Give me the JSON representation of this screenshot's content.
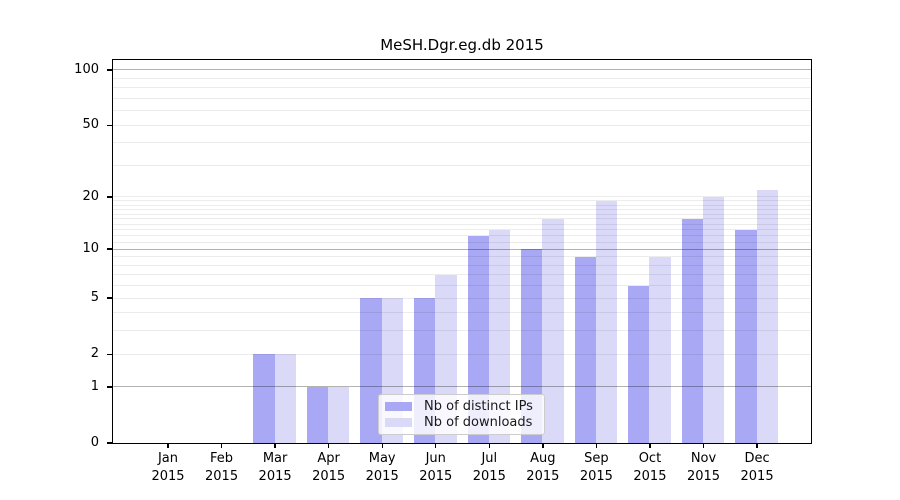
{
  "title": "MeSH.Dgr.eg.db 2015",
  "colors": {
    "distinct_ips": "#a8a8f5",
    "downloads": "#dadaf8",
    "grid_major": "#b3b3b3",
    "grid_minor": "#ededed",
    "frame": "#000000"
  },
  "legend": {
    "items": [
      {
        "label": "Nb of distinct IPs"
      },
      {
        "label": "Nb of downloads"
      }
    ]
  },
  "chart_data": {
    "type": "bar",
    "title": "MeSH.Dgr.eg.db 2015",
    "categories": [
      "Jan 2015",
      "Feb 2015",
      "Mar 2015",
      "Apr 2015",
      "May 2015",
      "Jun 2015",
      "Jul 2015",
      "Aug 2015",
      "Sep 2015",
      "Oct 2015",
      "Nov 2015",
      "Dec 2015"
    ],
    "series": [
      {
        "name": "Nb of distinct IPs",
        "color": "#a8a8f5",
        "values": [
          0,
          0,
          2,
          1,
          5,
          5,
          12,
          10,
          9,
          6,
          15,
          13
        ]
      },
      {
        "name": "Nb of downloads",
        "color": "#dadaf8",
        "values": [
          0,
          0,
          2,
          1,
          5,
          7,
          13,
          15,
          19,
          9,
          20,
          22
        ]
      }
    ],
    "xlabel": "",
    "ylabel": "",
    "yscale": "log1p",
    "ylim": [
      0,
      113
    ],
    "yticks": [
      0,
      1,
      2,
      5,
      10,
      20,
      50,
      100
    ],
    "grid": "horizontal",
    "grid_major_at": [
      1,
      10,
      100
    ],
    "grid_minor_at": [
      2,
      3,
      4,
      5,
      6,
      7,
      8,
      9,
      11,
      12,
      13,
      14,
      15,
      16,
      17,
      18,
      19,
      20,
      30,
      40,
      50,
      60,
      70,
      80,
      90
    ],
    "legend_position": "lower center"
  }
}
